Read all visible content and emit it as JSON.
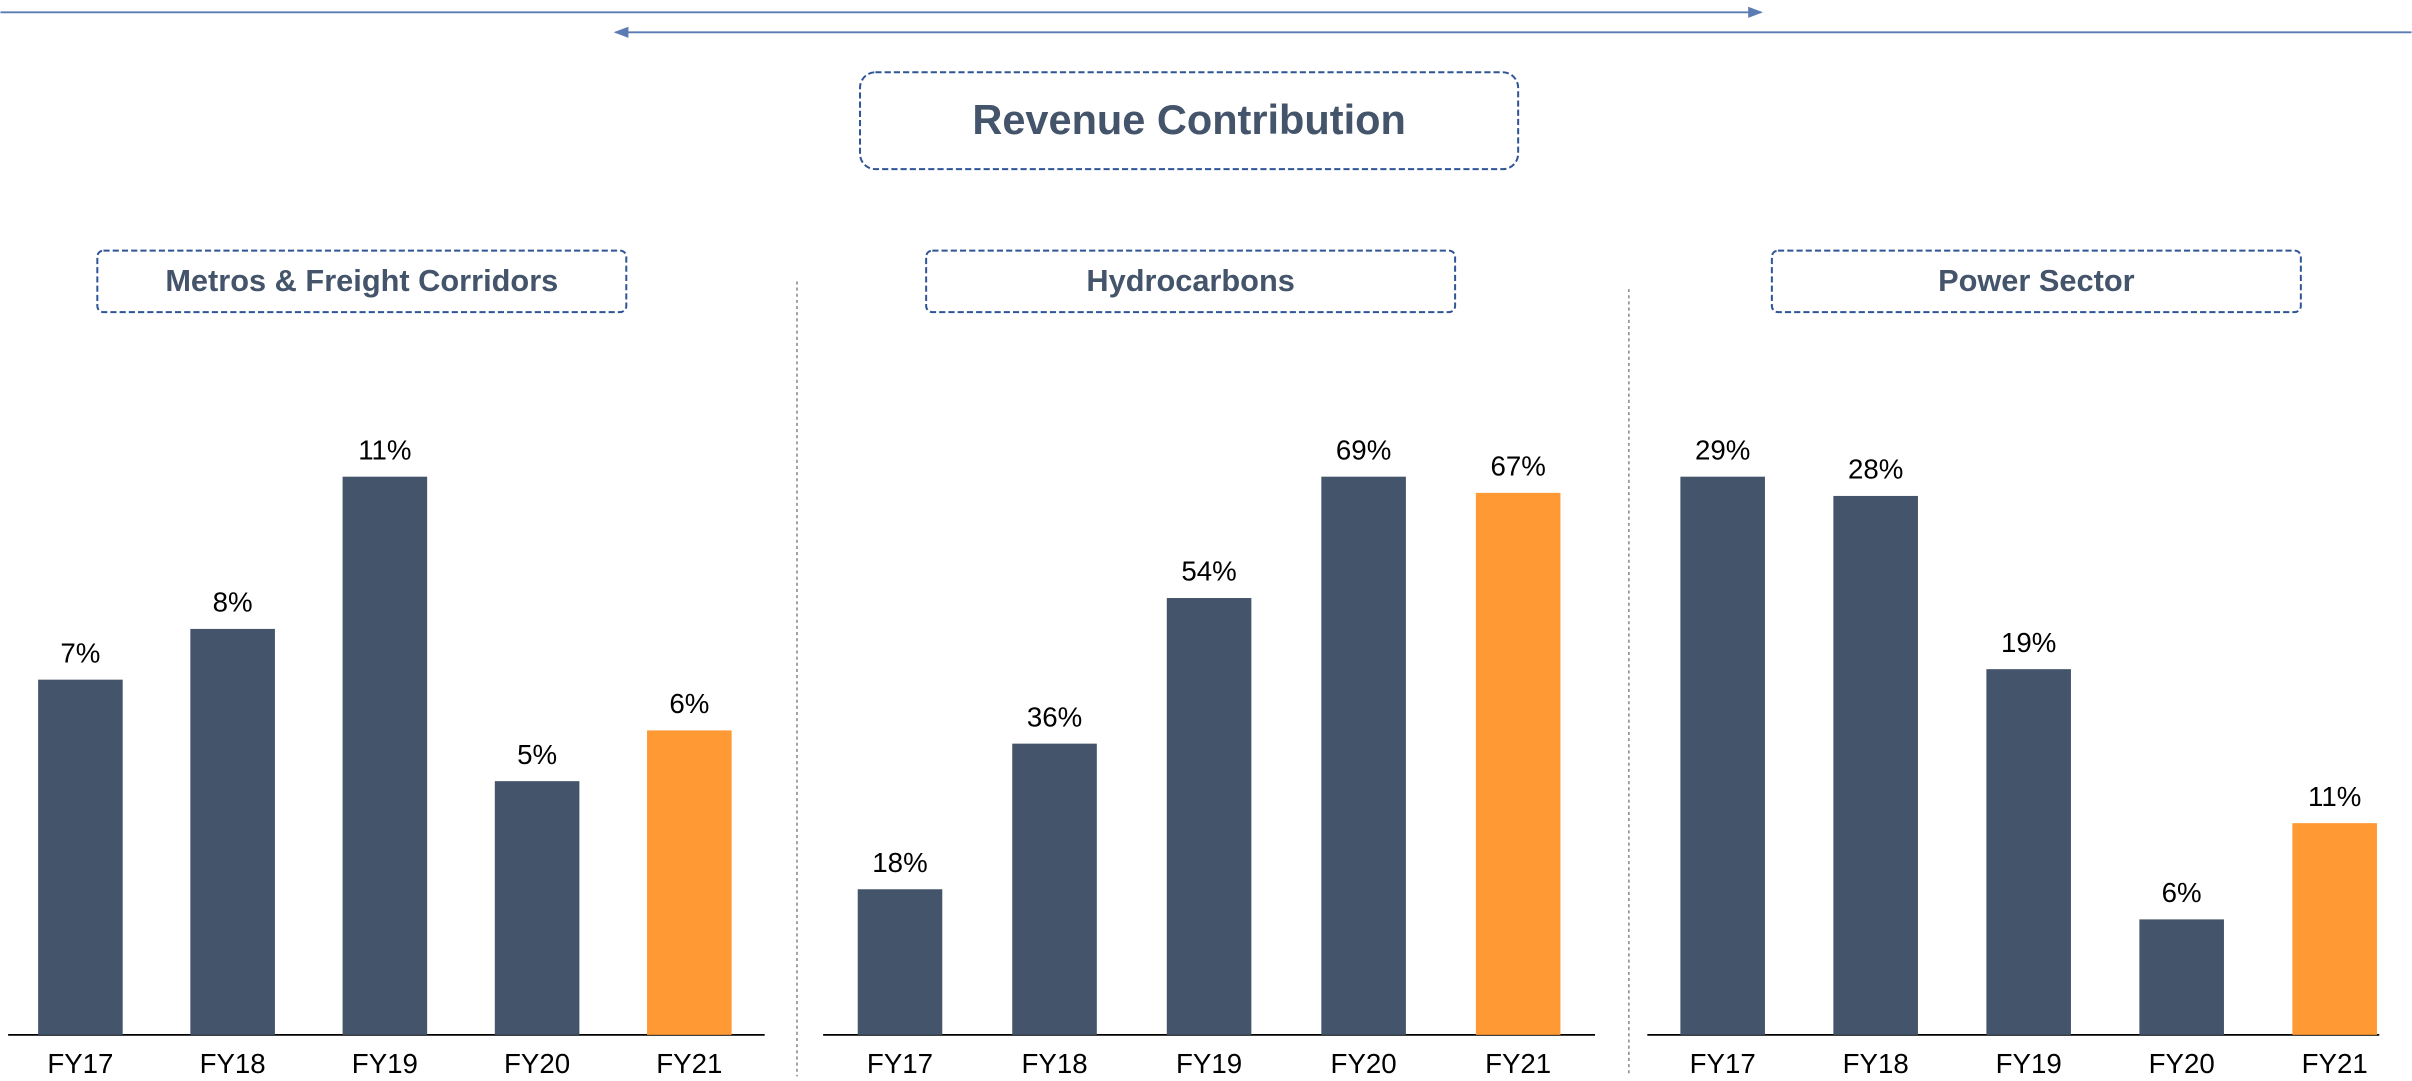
{
  "title": "Revenue Contribution",
  "chart_data": [
    {
      "type": "bar",
      "title": "Metros & Freight Corridors",
      "categories": [
        "FY17",
        "FY18",
        "FY19",
        "FY20",
        "FY21"
      ],
      "values": [
        7,
        8,
        11,
        5,
        6
      ],
      "value_labels": [
        "7%",
        "8%",
        "11%",
        "5%",
        "6%"
      ],
      "colors": [
        "#44546a",
        "#44546a",
        "#44546a",
        "#44546a",
        "#ff9933"
      ],
      "ylim": [
        0,
        11
      ]
    },
    {
      "type": "bar",
      "title": "Hydrocarbons",
      "categories": [
        "FY17",
        "FY18",
        "FY19",
        "FY20",
        "FY21"
      ],
      "values": [
        18,
        36,
        54,
        69,
        67
      ],
      "value_labels": [
        "18%",
        "36%",
        "54%",
        "69%",
        "67%"
      ],
      "colors": [
        "#44546a",
        "#44546a",
        "#44546a",
        "#44546a",
        "#ff9933"
      ],
      "ylim": [
        0,
        69
      ]
    },
    {
      "type": "bar",
      "title": "Power Sector",
      "categories": [
        "FY17",
        "FY18",
        "FY19",
        "FY20",
        "FY21"
      ],
      "values": [
        29,
        28,
        19,
        6,
        11
      ],
      "value_labels": [
        "29%",
        "28%",
        "19%",
        "6%",
        "11%"
      ],
      "colors": [
        "#44546a",
        "#44546a",
        "#44546a",
        "#44546a",
        "#ff9933"
      ],
      "ylim": [
        0,
        29
      ]
    }
  ]
}
